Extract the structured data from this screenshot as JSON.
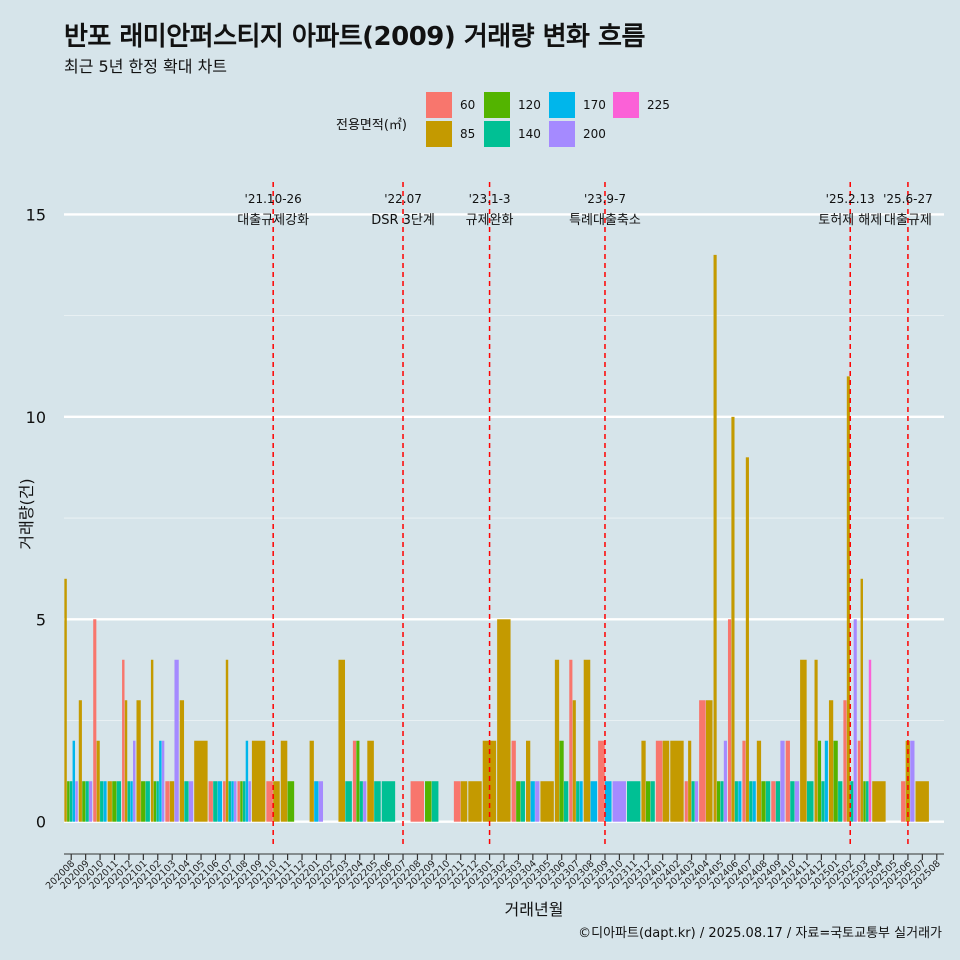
{
  "title": "반포 래미안퍼스티지 아파트(2009) 거래량 변화 흐름",
  "subtitle": "최근 5년 한정 확대 차트",
  "caption": "©디아파트(dapt.kr) / 2025.08.17 / 자료=국토교통부 실거래가",
  "legend": {
    "title": "전용면적(㎡)",
    "items": [
      {
        "label": "60",
        "color": "#f8766d"
      },
      {
        "label": "85",
        "color": "#c49a00"
      },
      {
        "label": "120",
        "color": "#53b400"
      },
      {
        "label": "140",
        "color": "#00c094"
      },
      {
        "label": "170",
        "color": "#00b6eb"
      },
      {
        "label": "200",
        "color": "#a58aff"
      },
      {
        "label": "225",
        "color": "#fb61d7"
      }
    ]
  },
  "chart_data": {
    "type": "bar",
    "xlabel": "거래년월",
    "ylabel": "거래량(건)",
    "ylim": [
      0,
      15
    ],
    "yticks": [
      0,
      5,
      10,
      15
    ],
    "grid": true,
    "categories": [
      "202008",
      "202009",
      "202010",
      "202011",
      "202012",
      "202101",
      "202102",
      "202103",
      "202104",
      "202105",
      "202106",
      "202107",
      "202108",
      "202109",
      "202110",
      "202111",
      "202112",
      "202201",
      "202202",
      "202203",
      "202204",
      "202205",
      "202206",
      "202207",
      "202208",
      "202209",
      "202210",
      "202211",
      "202212",
      "202301",
      "202302",
      "202303",
      "202304",
      "202305",
      "202306",
      "202307",
      "202308",
      "202309",
      "202310",
      "202311",
      "202312",
      "202401",
      "202402",
      "202403",
      "202404",
      "202405",
      "202406",
      "202407",
      "202408",
      "202409",
      "202410",
      "202411",
      "202412",
      "202501",
      "202502",
      "202503",
      "202504",
      "202505",
      "202506",
      "202507",
      "202508"
    ],
    "series": [
      {
        "name": "60",
        "color": "#f8766d",
        "values": [
          0,
          0,
          5,
          0,
          4,
          0,
          0,
          1,
          0,
          0,
          1,
          1,
          1,
          0,
          1,
          0,
          0,
          0,
          0,
          0,
          2,
          0,
          0,
          0,
          1,
          0,
          0,
          1,
          0,
          0,
          0,
          2,
          0,
          0,
          0,
          4,
          0,
          2,
          0,
          0,
          0,
          2,
          0,
          1,
          3,
          0,
          5,
          2,
          0,
          1,
          2,
          0,
          0,
          0,
          3,
          2,
          0,
          0,
          1,
          0,
          0
        ]
      },
      {
        "name": "85",
        "color": "#c49a00",
        "values": [
          6,
          3,
          2,
          1,
          3,
          3,
          4,
          1,
          3,
          2,
          0,
          4,
          0,
          2,
          1,
          2,
          0,
          2,
          0,
          4,
          0,
          2,
          0,
          0,
          0,
          0,
          0,
          1,
          1,
          2,
          5,
          0,
          2,
          1,
          4,
          3,
          4,
          0,
          0,
          0,
          2,
          2,
          2,
          2,
          3,
          14,
          10,
          9,
          2,
          0,
          0,
          4,
          4,
          3,
          11,
          6,
          1,
          0,
          2,
          1,
          0
        ]
      },
      {
        "name": "120",
        "color": "#53b400",
        "values": [
          1,
          1,
          0,
          1,
          0,
          1,
          1,
          0,
          0,
          0,
          0,
          0,
          1,
          0,
          0,
          1,
          0,
          0,
          0,
          0,
          2,
          0,
          0,
          0,
          0,
          1,
          0,
          0,
          0,
          0,
          0,
          1,
          0,
          0,
          2,
          0,
          0,
          0,
          0,
          0,
          1,
          0,
          0,
          0,
          0,
          1,
          0,
          0,
          1,
          0,
          0,
          0,
          2,
          2,
          0,
          1,
          0,
          0,
          0,
          0,
          0
        ]
      },
      {
        "name": "140",
        "color": "#00c094",
        "values": [
          1,
          1,
          1,
          1,
          1,
          1,
          1,
          0,
          1,
          0,
          1,
          1,
          1,
          0,
          0,
          0,
          0,
          0,
          0,
          1,
          1,
          1,
          1,
          0,
          0,
          1,
          0,
          0,
          0,
          0,
          0,
          1,
          0,
          0,
          1,
          1,
          0,
          0,
          0,
          1,
          1,
          0,
          0,
          1,
          0,
          1,
          1,
          1,
          1,
          1,
          1,
          1,
          1,
          1,
          1,
          1,
          0,
          0,
          0,
          0,
          0
        ]
      },
      {
        "name": "170",
        "color": "#00b6eb",
        "values": [
          2,
          0,
          1,
          0,
          1,
          0,
          2,
          0,
          0,
          0,
          1,
          1,
          2,
          0,
          0,
          0,
          0,
          1,
          0,
          0,
          0,
          0,
          0,
          0,
          0,
          0,
          0,
          0,
          0,
          0,
          0,
          0,
          1,
          0,
          0,
          1,
          1,
          1,
          0,
          0,
          0,
          0,
          0,
          0,
          0,
          0,
          1,
          1,
          0,
          0,
          0,
          0,
          2,
          0,
          0,
          0,
          0,
          0,
          0,
          0,
          0
        ]
      },
      {
        "name": "200",
        "color": "#a58aff",
        "values": [
          1,
          1,
          0,
          0,
          2,
          0,
          2,
          4,
          1,
          0,
          0,
          1,
          1,
          0,
          0,
          0,
          0,
          1,
          0,
          0,
          1,
          0,
          0,
          0,
          0,
          0,
          0,
          0,
          0,
          0,
          0,
          0,
          1,
          0,
          0,
          0,
          0,
          0,
          1,
          0,
          0,
          0,
          0,
          1,
          0,
          2,
          0,
          0,
          0,
          2,
          1,
          0,
          0,
          0,
          5,
          0,
          0,
          0,
          2,
          0,
          0
        ]
      },
      {
        "name": "225",
        "color": "#fb61d7",
        "values": [
          0,
          0,
          0,
          0,
          0,
          0,
          0,
          0,
          0,
          0,
          0,
          0,
          0,
          0,
          0,
          0,
          0,
          0,
          0,
          0,
          0,
          0,
          0,
          0,
          0,
          0,
          0,
          0,
          0,
          0,
          0,
          0,
          0,
          0,
          0,
          0,
          0,
          0,
          0,
          0,
          0,
          0,
          0,
          0,
          0,
          0,
          0,
          0,
          0,
          0,
          0,
          0,
          0,
          0,
          0,
          4,
          0,
          0,
          0,
          0,
          0
        ]
      }
    ],
    "annotations": [
      {
        "category": "202110",
        "date": "'21.10-26",
        "label": "대출규제강화"
      },
      {
        "category": "202207",
        "date": "'22.07",
        "label": "DSR 3단계"
      },
      {
        "category": "202301",
        "date": "'23.1-3",
        "label": "규제완화"
      },
      {
        "category": "202309",
        "date": "'23.9-7",
        "label": "특례대출축소"
      },
      {
        "category": "202502",
        "date": "'25.2.13",
        "label": "토허제 해제"
      },
      {
        "category": "202506",
        "date": "'25.6-27",
        "label": "대출규제"
      }
    ],
    "annotation_color": "#ff0000"
  }
}
